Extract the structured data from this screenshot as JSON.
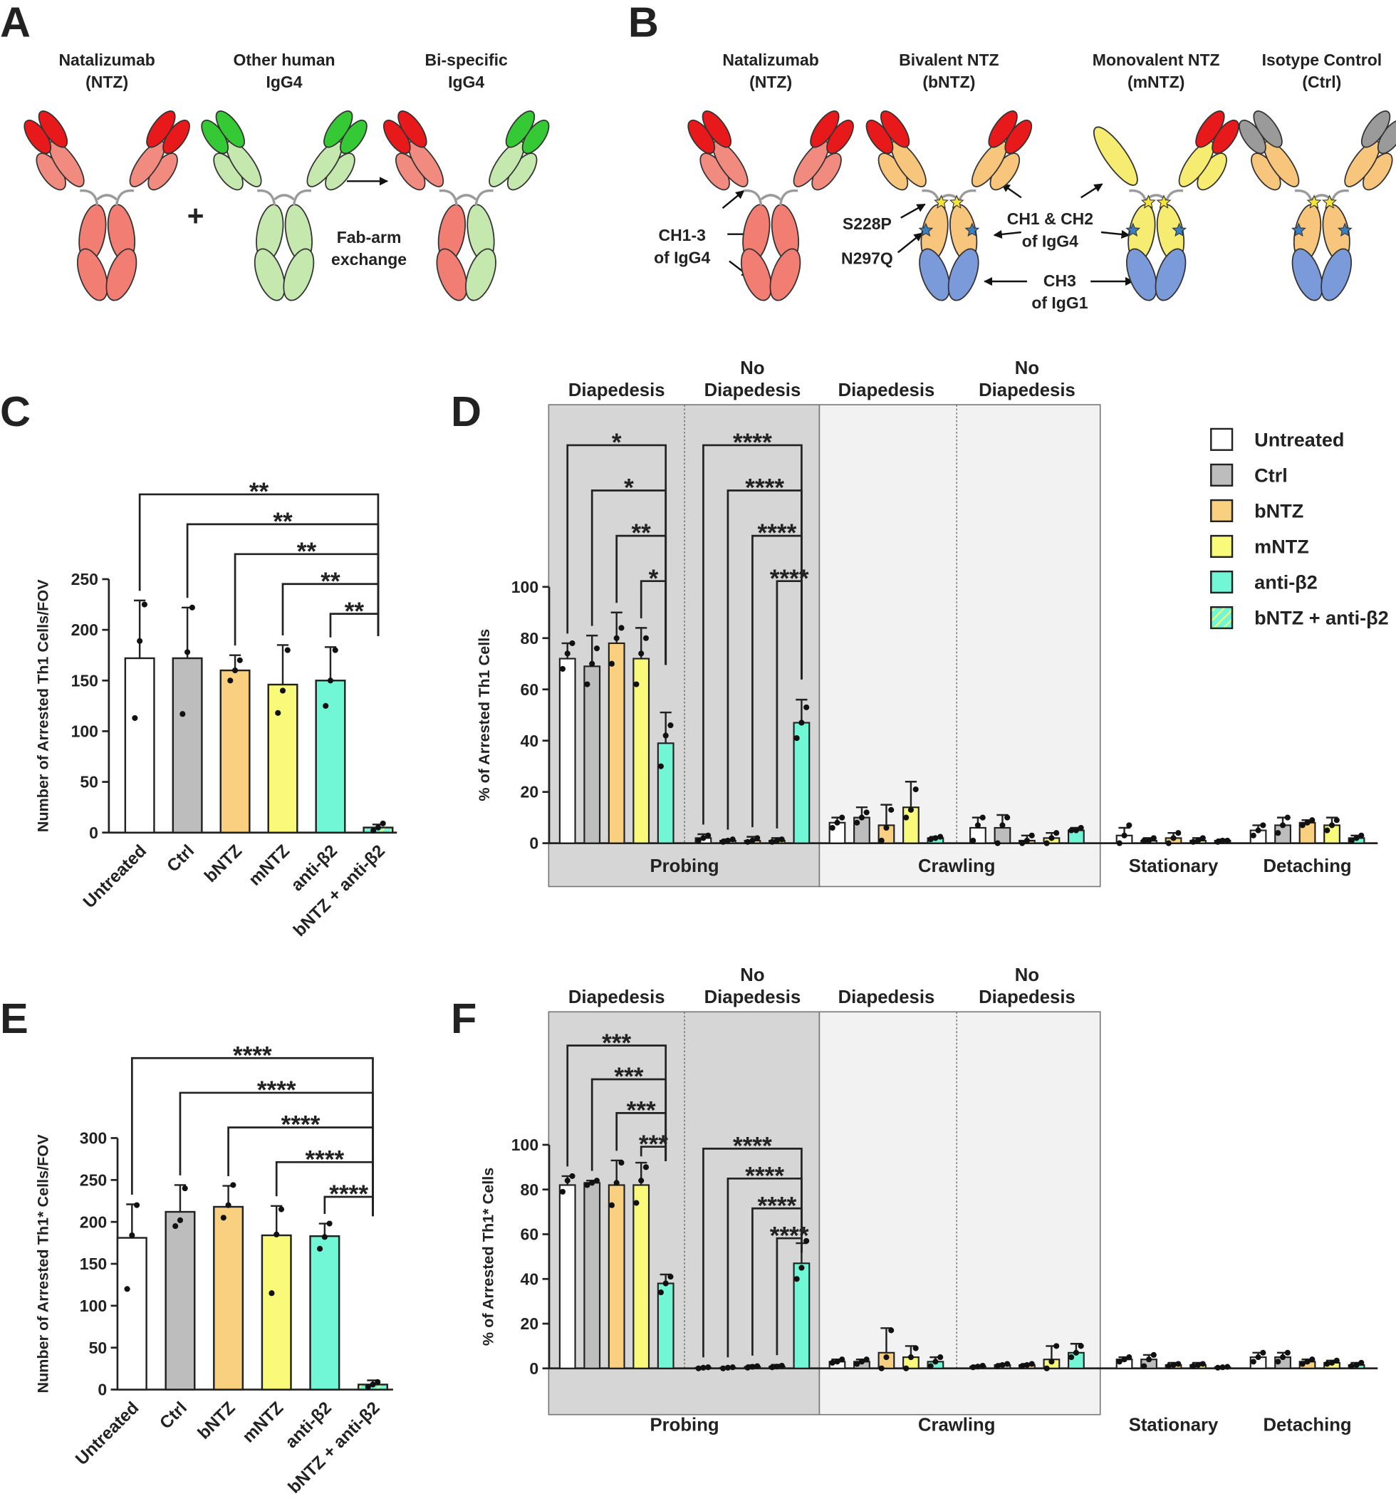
{
  "diagram_a": {
    "label": "A",
    "antibodies": [
      [
        "Natalizumab",
        "(NTZ)"
      ],
      [
        "Other human",
        "IgG4"
      ],
      [
        "Bi-specific",
        "IgG4"
      ]
    ],
    "plus": "+",
    "arrow_text": [
      "Fab-arm",
      "exchange"
    ]
  },
  "diagram_b": {
    "label": "B",
    "antibodies": [
      [
        "Natalizumab",
        "(NTZ)"
      ],
      [
        "Bivalent NTZ",
        "(bNTZ)"
      ],
      [
        "Monovalent NTZ",
        "(mNTZ)"
      ],
      [
        "Isotype Control",
        "(Ctrl)"
      ]
    ],
    "annotations": {
      "ch13": [
        "CH1-3",
        "of IgG4"
      ],
      "s228p": "S228P",
      "n297q": "N297Q",
      "ch12": [
        "CH1 & CH2",
        "of IgG4"
      ],
      "ch3": [
        "CH3",
        "of IgG1"
      ]
    }
  },
  "chart_data": [
    {
      "type": "bar",
      "panel": "C",
      "y_label": "Number of Arrested Th1 Cells/FOV",
      "categories": [
        "Untreated",
        "Ctrl",
        "bNTZ",
        "mNTZ",
        "anti-β2",
        "bNTZ + anti-β2"
      ],
      "values": [
        172,
        172,
        160,
        146,
        150,
        5
      ],
      "errors": [
        57,
        50,
        15,
        39,
        33,
        3
      ],
      "points": [
        [
          113,
          189,
          225
        ],
        [
          117,
          178,
          222
        ],
        [
          150,
          160,
          170
        ],
        [
          118,
          140,
          180
        ],
        [
          125,
          150,
          180
        ],
        [
          2,
          5,
          9
        ]
      ],
      "colors": [
        "#ffffff",
        "#bdbdbd",
        "#f9d07f",
        "#fafa7a",
        "#72f7d6",
        "#72f7d6"
      ],
      "hatched": [
        false,
        false,
        false,
        false,
        false,
        true
      ],
      "hatch_color": "#fafa7a",
      "ylim": [
        0,
        250
      ],
      "yticks": [
        0,
        50,
        100,
        150,
        200,
        250
      ],
      "comparisons": [
        {
          "from": 0,
          "to": 5,
          "label": "**"
        },
        {
          "from": 1,
          "to": 5,
          "label": "**"
        },
        {
          "from": 2,
          "to": 5,
          "label": "**"
        },
        {
          "from": 3,
          "to": 5,
          "label": "**"
        },
        {
          "from": 4,
          "to": 5,
          "label": "**"
        }
      ]
    },
    {
      "type": "grouped-bar",
      "panel": "D",
      "y_label": "% of Arrested Th1 Cells",
      "categories": [
        "Diapedesis",
        "No Diapedesis",
        "Diapedesis",
        "No Diapedesis",
        null,
        null
      ],
      "category_groups": [
        {
          "label": "Probing",
          "start": 0,
          "end": 1,
          "shade": "#d6d6d6"
        },
        {
          "label": "Crawling",
          "start": 2,
          "end": 3,
          "shade": "#f2f2f2"
        },
        {
          "label": "Stationary",
          "start": 4,
          "end": 4
        },
        {
          "label": "Detaching",
          "start": 5,
          "end": 5
        }
      ],
      "series": [
        {
          "name": "Untreated",
          "color": "#ffffff",
          "values": [
            72,
            2,
            8,
            6,
            3,
            5
          ],
          "errors": [
            6,
            1.5,
            2,
            4,
            3,
            2
          ],
          "points": [
            [
              68,
              74,
              78
            ],
            [
              1,
              2,
              3
            ],
            [
              6,
              8,
              10
            ],
            [
              1,
              7,
              10
            ],
            [
              0,
              3,
              7
            ],
            [
              3,
              5,
              7
            ]
          ]
        },
        {
          "name": "Ctrl",
          "color": "#bdbdbd",
          "values": [
            69,
            1,
            10,
            6,
            1,
            7
          ],
          "errors": [
            12,
            0.5,
            4,
            5,
            1,
            3
          ],
          "points": [
            [
              62,
              70,
              76
            ],
            [
              0.5,
              1,
              1.5
            ],
            [
              8,
              10,
              12
            ],
            [
              0,
              7,
              10
            ],
            [
              1,
              1,
              2
            ],
            [
              4,
              7,
              10
            ]
          ]
        },
        {
          "name": "bNTZ",
          "color": "#f9d07f",
          "values": [
            78,
            1,
            7,
            1,
            2,
            8
          ],
          "errors": [
            12,
            1.5,
            8,
            2,
            2,
            1
          ],
          "points": [
            [
              70,
              80,
              84
            ],
            [
              0.5,
              1,
              2
            ],
            [
              1,
              6,
              13
            ],
            [
              0,
              1,
              3
            ],
            [
              0,
              2,
              4
            ],
            [
              7,
              8,
              9
            ]
          ]
        },
        {
          "name": "mNTZ",
          "color": "#fafa7a",
          "values": [
            72,
            1,
            14,
            2,
            1,
            7
          ],
          "errors": [
            12,
            1,
            10,
            2,
            1,
            3
          ],
          "points": [
            [
              62,
              74,
              80
            ],
            [
              0.5,
              1,
              1.5
            ],
            [
              10,
              13,
              21
            ],
            [
              0,
              2,
              4
            ],
            [
              0.5,
              1,
              2
            ],
            [
              5,
              7,
              9
            ]
          ]
        },
        {
          "name": "anti-β2",
          "color": "#72f7d6",
          "values": [
            39,
            47,
            2,
            5,
            1,
            2
          ],
          "errors": [
            12,
            9,
            0.5,
            1,
            0.5,
            1
          ],
          "points": [
            [
              30,
              42,
              46
            ],
            [
              41,
              47,
              53
            ],
            [
              1.5,
              2,
              2.5
            ],
            [
              5,
              5,
              6
            ],
            [
              0.5,
              1,
              1
            ],
            [
              1,
              2,
              3
            ]
          ]
        },
        {
          "name": "bNTZ + anti-β2",
          "color": "#72f7d6",
          "hatched": true,
          "hatch_color": "#fafa7a",
          "values": [
            null,
            null,
            null,
            null,
            null,
            null
          ]
        }
      ],
      "legend": "right",
      "ylim": [
        0,
        100
      ],
      "yticks": [
        0,
        20,
        40,
        60,
        80,
        100
      ],
      "comparisons": [
        {
          "group": 0,
          "from": 0,
          "to": 4,
          "label": "*"
        },
        {
          "group": 0,
          "from": 1,
          "to": 4,
          "label": "*"
        },
        {
          "group": 0,
          "from": 2,
          "to": 4,
          "label": "**"
        },
        {
          "group": 0,
          "from": 3,
          "to": 4,
          "label": "*"
        },
        {
          "group": 1,
          "from": 0,
          "to": 4,
          "label": "****"
        },
        {
          "group": 1,
          "from": 1,
          "to": 4,
          "label": "****"
        },
        {
          "group": 1,
          "from": 2,
          "to": 4,
          "label": "****"
        },
        {
          "group": 1,
          "from": 3,
          "to": 4,
          "label": "****"
        }
      ]
    },
    {
      "type": "bar",
      "panel": "E",
      "y_label": "Number of Arrested Th1* Cells/FOV",
      "categories": [
        "Untreated",
        "Ctrl",
        "bNTZ",
        "mNTZ",
        "anti-β2",
        "bNTZ + anti-β2"
      ],
      "values": [
        181,
        212,
        218,
        184,
        183,
        6
      ],
      "errors": [
        40,
        32,
        25,
        35,
        15,
        5
      ],
      "points": [
        [
          120,
          184,
          220
        ],
        [
          195,
          202,
          240
        ],
        [
          205,
          220,
          244
        ],
        [
          115,
          185,
          215
        ],
        [
          168,
          182,
          198
        ],
        [
          3,
          6,
          9
        ]
      ],
      "colors": [
        "#ffffff",
        "#bdbdbd",
        "#f9d07f",
        "#fafa7a",
        "#72f7d6",
        "#72f7d6"
      ],
      "hatched": [
        false,
        false,
        false,
        false,
        false,
        true
      ],
      "hatch_color": "#fafa7a",
      "ylim": [
        0,
        300
      ],
      "yticks": [
        0,
        50,
        100,
        150,
        200,
        250,
        300
      ],
      "comparisons": [
        {
          "from": 0,
          "to": 5,
          "label": "****"
        },
        {
          "from": 1,
          "to": 5,
          "label": "****"
        },
        {
          "from": 2,
          "to": 5,
          "label": "****"
        },
        {
          "from": 3,
          "to": 5,
          "label": "****"
        },
        {
          "from": 4,
          "to": 5,
          "label": "****"
        }
      ]
    },
    {
      "type": "grouped-bar",
      "panel": "F",
      "y_label": "% of Arrested Th1* Cells",
      "categories": [
        "Diapedesis",
        "No Diapedesis",
        "Diapedesis",
        "No Diapedesis",
        null,
        null
      ],
      "category_groups": [
        {
          "label": "Probing",
          "start": 0,
          "end": 1,
          "shade": "#d6d6d6"
        },
        {
          "label": "Crawling",
          "start": 2,
          "end": 3,
          "shade": "#f2f2f2"
        },
        {
          "label": "Stationary",
          "start": 4,
          "end": 4
        },
        {
          "label": "Detaching",
          "start": 5,
          "end": 5
        }
      ],
      "series": [
        {
          "color": "#ffffff",
          "values": [
            82,
            0.3,
            3,
            0.8,
            4,
            5
          ],
          "errors": [
            4,
            0.3,
            1,
            0.5,
            1,
            2
          ],
          "points": [
            [
              79,
              84,
              86
            ],
            [
              0,
              0.3,
              0.5
            ],
            [
              2.5,
              3,
              4
            ],
            [
              0.5,
              0.8,
              1.2
            ],
            [
              3,
              4,
              5
            ],
            [
              3,
              5,
              7
            ]
          ]
        },
        {
          "color": "#bdbdbd",
          "values": [
            83,
            0.3,
            3,
            1.5,
            4,
            5
          ],
          "errors": [
            1,
            0.3,
            1,
            0.5,
            2,
            2
          ],
          "points": [
            [
              82,
              83,
              84
            ],
            [
              0,
              0.3,
              0.5
            ],
            [
              2,
              3,
              4
            ],
            [
              1,
              1.5,
              2
            ],
            [
              1,
              4,
              6
            ],
            [
              3,
              5,
              7
            ]
          ]
        },
        {
          "color": "#f9d07f",
          "values": [
            82,
            0.7,
            7,
            1.5,
            1.5,
            3
          ],
          "errors": [
            11,
            0.7,
            11,
            0.5,
            1,
            1
          ],
          "points": [
            [
              73,
              83,
              92
            ],
            [
              0.3,
              0.7,
              1
            ],
            [
              0,
              5,
              17
            ],
            [
              1,
              1.5,
              2
            ],
            [
              1,
              1.5,
              2
            ],
            [
              2,
              3,
              4
            ]
          ]
        },
        {
          "color": "#fafa7a",
          "values": [
            82,
            0.8,
            5,
            4,
            1.5,
            2.5
          ],
          "errors": [
            10,
            0.8,
            5,
            6,
            1,
            1
          ],
          "points": [
            [
              74,
              84,
              90
            ],
            [
              0.5,
              0.8,
              1.2
            ],
            [
              0,
              5,
              9
            ],
            [
              0,
              3,
              10
            ],
            [
              1,
              1.5,
              2
            ],
            [
              2,
              2.5,
              3.5
            ]
          ]
        },
        {
          "color": "#72f7d6",
          "values": [
            38,
            47,
            3,
            7,
            0.5,
            1.5
          ],
          "errors": [
            4,
            9,
            2,
            4,
            0.3,
            1
          ],
          "points": [
            [
              34,
              38,
              41
            ],
            [
              40,
              45,
              57
            ],
            [
              1,
              3,
              5
            ],
            [
              5,
              7,
              10
            ],
            [
              0.3,
              0.5,
              0.7
            ],
            [
              1,
              1.5,
              2.5
            ]
          ]
        }
      ],
      "ylim": [
        0,
        100
      ],
      "yticks": [
        0,
        20,
        40,
        60,
        80,
        100
      ],
      "comparisons": [
        {
          "group": 0,
          "from": 0,
          "to": 4,
          "label": "***"
        },
        {
          "group": 0,
          "from": 1,
          "to": 4,
          "label": "***"
        },
        {
          "group": 0,
          "from": 2,
          "to": 4,
          "label": "***"
        },
        {
          "group": 0,
          "from": 3,
          "to": 4,
          "label": "***"
        },
        {
          "group": 1,
          "from": 0,
          "to": 4,
          "label": "****"
        },
        {
          "group": 1,
          "from": 1,
          "to": 4,
          "label": "****"
        },
        {
          "group": 1,
          "from": 2,
          "to": 4,
          "label": "****"
        },
        {
          "group": 1,
          "from": 3,
          "to": 4,
          "label": "****"
        }
      ]
    }
  ]
}
